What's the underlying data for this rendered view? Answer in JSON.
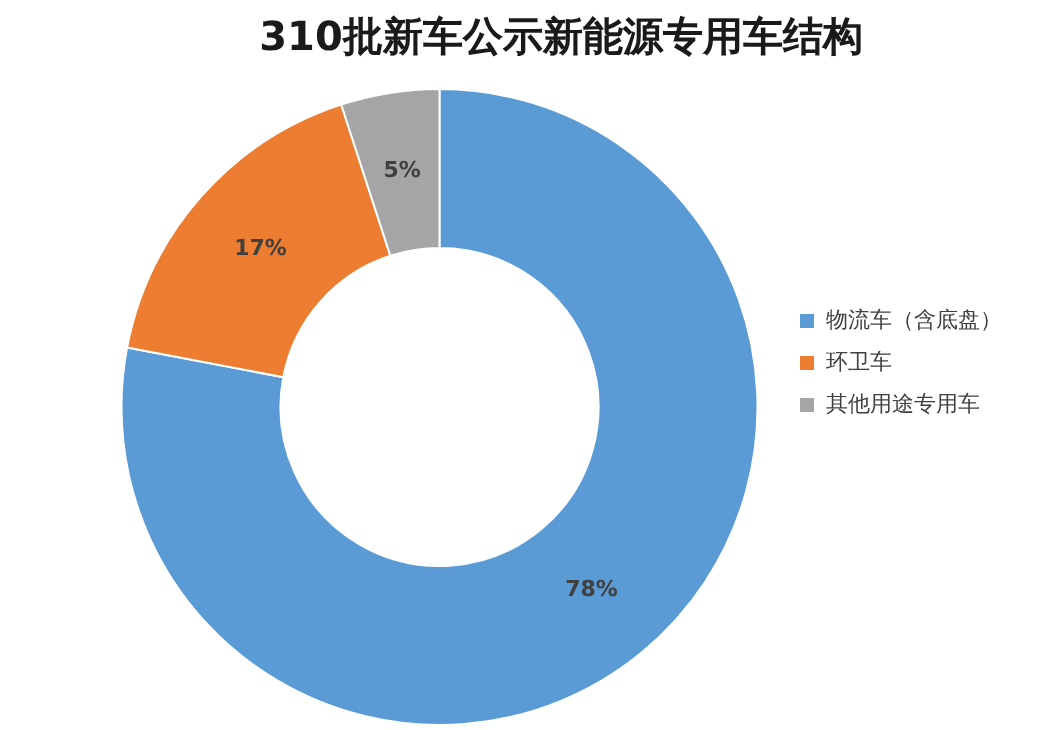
{
  "chart_data": {
    "type": "donut",
    "title": "310批新车公示新能源专用车结构",
    "categories": [
      "物流车（含底盘）",
      "环卫车",
      "其他用途专用车"
    ],
    "values": [
      78,
      17,
      5
    ],
    "colors": [
      "#5b9bd5",
      "#ed7d31",
      "#a5a5a5"
    ],
    "value_labels": [
      "78%",
      "17%",
      "5%"
    ],
    "legend": "right"
  }
}
